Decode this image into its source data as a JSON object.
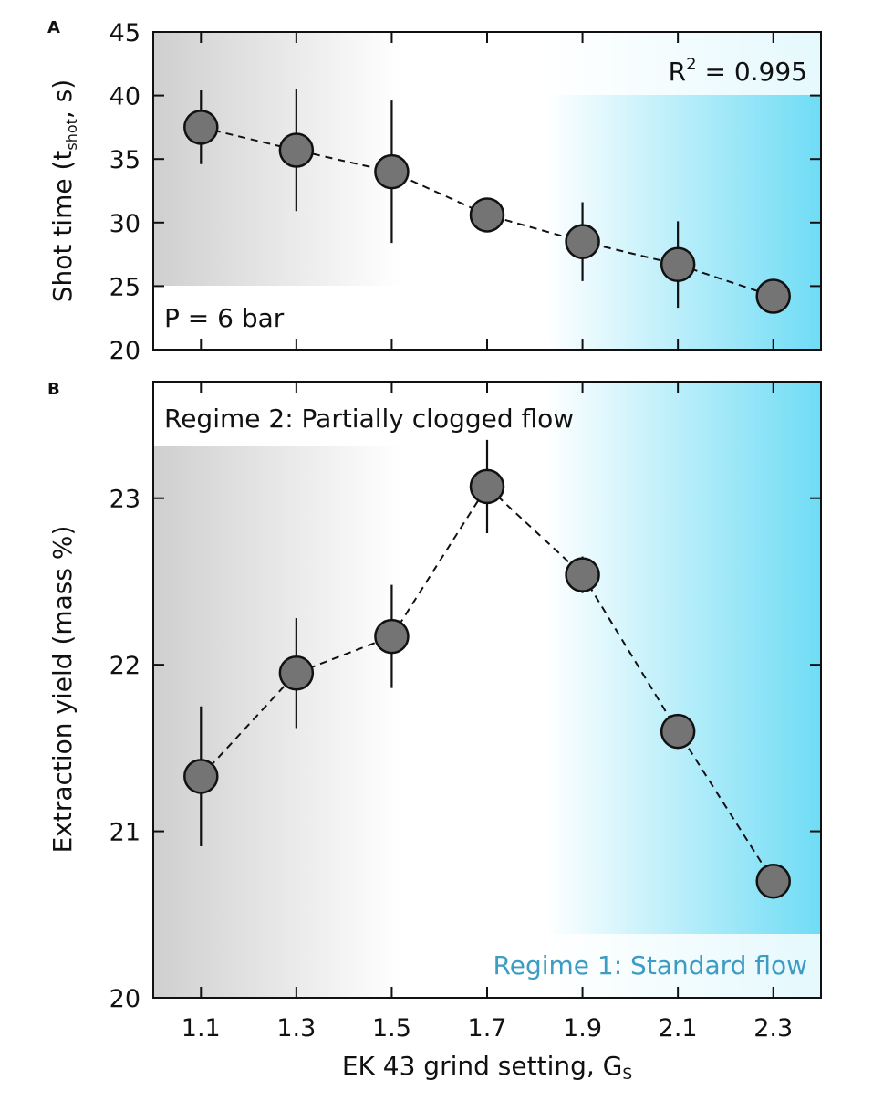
{
  "colors": {
    "gray_band": "#cfcfcf",
    "blue_band": "#6fdcf5",
    "marker_fill": "#747474",
    "regime1_text": "#3d9cc4"
  },
  "chart_data": [
    {
      "panel": "A",
      "type": "scatter",
      "xlabel": "",
      "ylabel": {
        "main": "Shot time (t",
        "sub": "shot",
        "tail": ", s)"
      },
      "xlim": [
        1.0,
        2.4
      ],
      "ylim": [
        20,
        45
      ],
      "yticks": [
        "20",
        "25",
        "30",
        "35",
        "40",
        "45"
      ],
      "x": [
        1.1,
        1.3,
        1.5,
        1.7,
        1.9,
        2.1,
        2.3
      ],
      "y": [
        37.5,
        35.7,
        34.0,
        30.6,
        28.5,
        26.7,
        24.2
      ],
      "yerr": [
        2.9,
        4.8,
        5.6,
        0.0,
        3.1,
        3.4,
        0.0
      ],
      "annotations": {
        "r2_base": "R",
        "r2_exp": "2",
        "r2_rest": " = 0.995",
        "pressure": "P = 6 bar"
      }
    },
    {
      "panel": "B",
      "type": "scatter",
      "xlabel": {
        "main": "EK 43 grind setting, G",
        "sub": "S"
      },
      "ylabel": "Extraction yield (mass %)",
      "xlim": [
        1.0,
        2.4
      ],
      "ylim": [
        20.0,
        23.7
      ],
      "xticks": [
        "1.1",
        "1.3",
        "1.5",
        "1.7",
        "1.9",
        "2.1",
        "2.3"
      ],
      "yticks": [
        "20",
        "21",
        "22",
        "23"
      ],
      "x": [
        1.1,
        1.3,
        1.5,
        1.7,
        1.9,
        2.1,
        2.3
      ],
      "y": [
        21.33,
        21.95,
        22.17,
        23.07,
        22.54,
        21.6,
        20.7
      ],
      "yerr": [
        0.42,
        0.33,
        0.31,
        0.28,
        0.11,
        0.0,
        0.0
      ],
      "annotations": {
        "regime2": "Regime 2: Partially clogged flow",
        "regime1": "Regime 1: Standard flow"
      }
    }
  ]
}
